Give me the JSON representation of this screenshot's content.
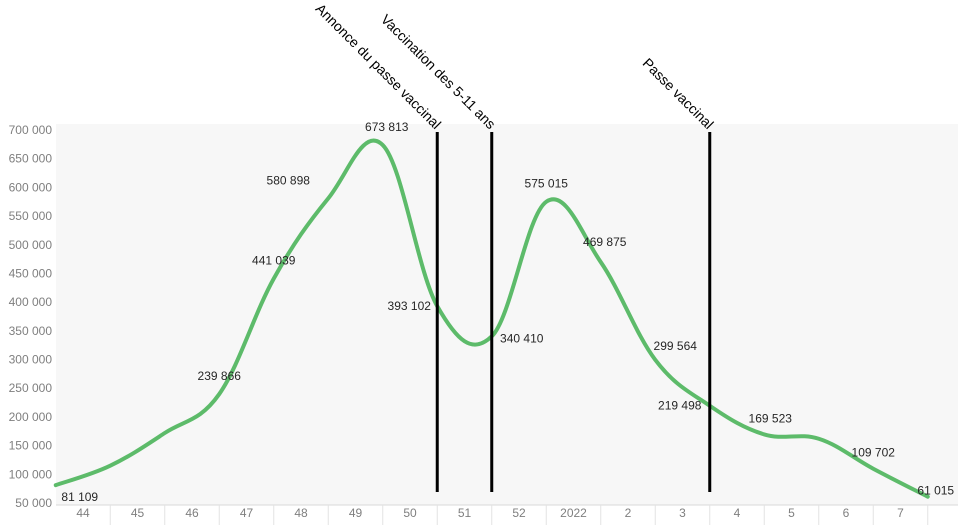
{
  "chart_data": {
    "type": "line",
    "title": "",
    "xlabel": "",
    "ylabel": "",
    "categories": [
      "44",
      "45",
      "46",
      "47",
      "48",
      "49",
      "50",
      "51",
      "52",
      "2022",
      "2",
      "3",
      "4",
      "5",
      "6",
      "7"
    ],
    "ylim": [
      50000,
      700000
    ],
    "yticks": [
      50000,
      100000,
      150000,
      200000,
      250000,
      300000,
      350000,
      400000,
      450000,
      500000,
      550000,
      600000,
      650000,
      700000
    ],
    "ytick_labels": [
      "50 000",
      "100 000",
      "150 000",
      "200 000",
      "250 000",
      "300 000",
      "350 000",
      "400 000",
      "450 000",
      "500 000",
      "550 000",
      "600 000",
      "650 000",
      "700 000"
    ],
    "grid": false,
    "legend": "none",
    "series": [
      {
        "color": "#5dbb6a",
        "points": [
          {
            "x": 43.5,
            "y": 81109,
            "label": "81 109"
          },
          {
            "x": 44.5,
            "y": 115000,
            "label": ""
          },
          {
            "x": 45.5,
            "y": 172000,
            "label": ""
          },
          {
            "x": 46.5,
            "y": 239866,
            "label": "239 866"
          },
          {
            "x": 47.5,
            "y": 441039,
            "label": "441 039"
          },
          {
            "x": 48.5,
            "y": 580898,
            "label": "580 898"
          },
          {
            "x": 49.5,
            "y": 673813,
            "label": "673 813"
          },
          {
            "x": 50.5,
            "y": 393102,
            "label": "393 102"
          },
          {
            "x": 51.5,
            "y": 340410,
            "label": "340 410"
          },
          {
            "x": 52.5,
            "y": 575015,
            "label": "575 015"
          },
          {
            "x": 53.5,
            "y": 469875,
            "label": "469 875"
          },
          {
            "x": 54.5,
            "y": 299564,
            "label": "299 564"
          },
          {
            "x": 55.5,
            "y": 219498,
            "label": "219 498"
          },
          {
            "x": 56.5,
            "y": 169523,
            "label": "169 523"
          },
          {
            "x": 57.5,
            "y": 162000,
            "label": ""
          },
          {
            "x": 58.5,
            "y": 109702,
            "label": "109 702"
          },
          {
            "x": 59.5,
            "y": 61015,
            "label": "61 015"
          }
        ]
      }
    ],
    "annotations": [
      {
        "x": 50.5,
        "label": "Annonce du passe vaccinal"
      },
      {
        "x": 51.5,
        "label": "Vaccination des 5-11 ans"
      },
      {
        "x": 55.5,
        "label": "Passe vaccinal"
      }
    ]
  }
}
